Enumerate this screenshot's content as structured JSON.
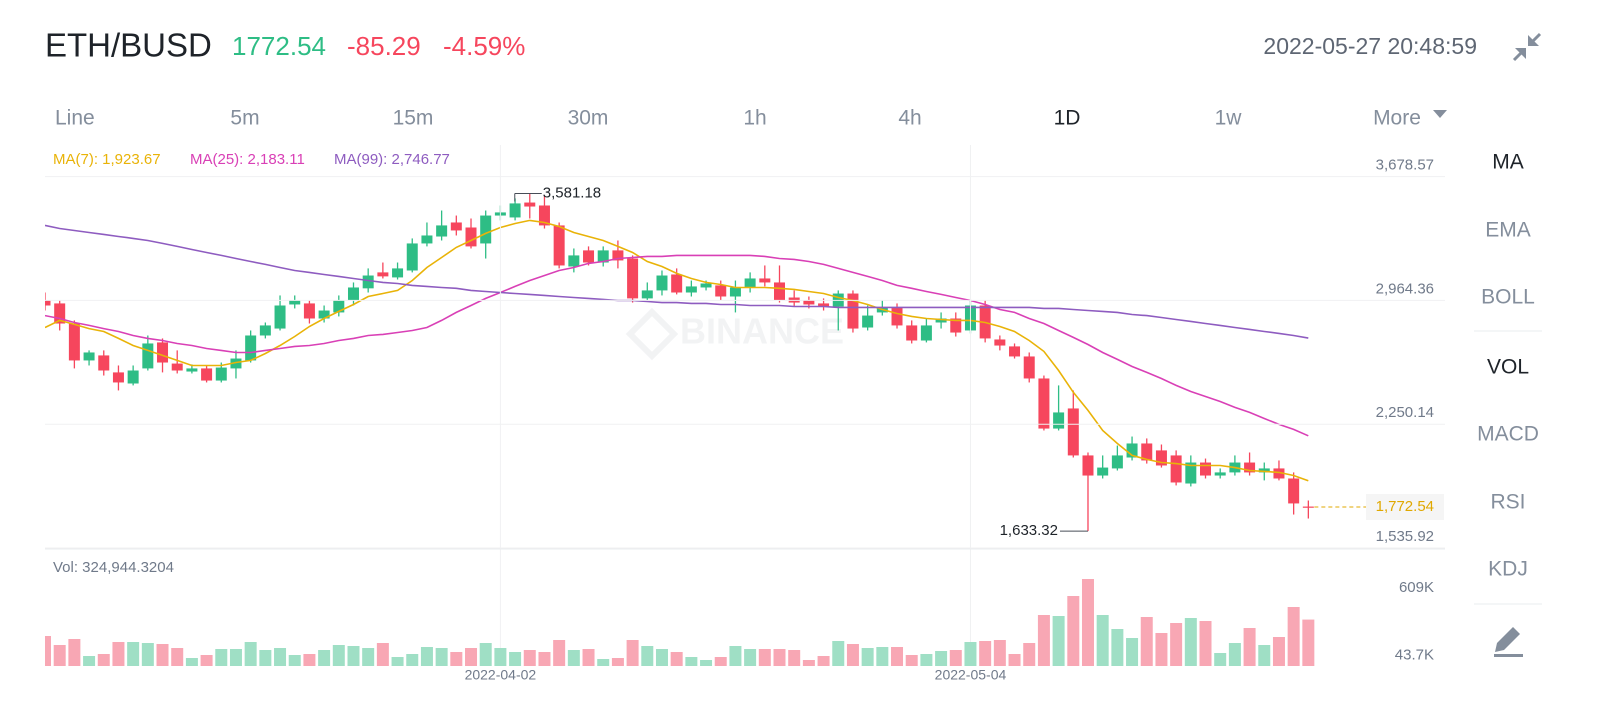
{
  "header": {
    "symbol": "ETH/BUSD",
    "price": "1772.54",
    "change": "-85.29",
    "change_pct": "-4.59%",
    "time": "2022-05-27 20:48:59"
  },
  "timeframes": [
    {
      "label": "Line"
    },
    {
      "label": "5m"
    },
    {
      "label": "15m"
    },
    {
      "label": "30m"
    },
    {
      "label": "1h"
    },
    {
      "label": "4h"
    },
    {
      "label": "1D",
      "active": true
    },
    {
      "label": "1w"
    },
    {
      "label": "More"
    }
  ],
  "indicators": [
    {
      "label": "MA",
      "active": true
    },
    {
      "label": "EMA"
    },
    {
      "label": "BOLL"
    },
    {
      "label": "VOL",
      "active": true
    },
    {
      "label": "MACD"
    },
    {
      "label": "RSI"
    },
    {
      "label": "KDJ"
    }
  ],
  "watermark": "BINANCE",
  "chart_data": [
    {
      "type": "candlestick",
      "up_color": "#2ebd85",
      "down_color": "#f6465d",
      "grid": true,
      "categories": [
        null,
        null,
        null,
        null,
        null,
        null,
        null,
        null,
        null,
        null,
        null,
        null,
        null,
        null,
        null,
        null,
        null,
        null,
        null,
        null,
        null,
        null,
        null,
        null,
        null,
        null,
        null,
        null,
        null,
        null,
        null,
        "2022-04-02",
        null,
        null,
        null,
        null,
        null,
        null,
        null,
        null,
        null,
        null,
        null,
        null,
        null,
        null,
        null,
        null,
        null,
        null,
        null,
        null,
        null,
        null,
        null,
        null,
        null,
        null,
        null,
        null,
        null,
        null,
        null,
        "2022-05-04",
        null,
        null,
        null,
        null,
        null,
        null,
        null,
        null,
        null,
        null,
        null,
        null,
        null,
        null,
        null,
        null,
        null,
        null,
        null,
        null,
        null,
        null,
        null
      ],
      "open": [
        2964,
        2947,
        2831,
        2618,
        2647,
        2549,
        2485,
        2572,
        2722,
        2600,
        2554,
        2572,
        2502,
        2572,
        2618,
        2762,
        2802,
        2941,
        2947,
        2860,
        2895,
        2964,
        3034,
        3126,
        3097,
        3137,
        3293,
        3333,
        3414,
        3385,
        3293,
        3454,
        3443,
        3529,
        3512,
        3397,
        3160,
        3253,
        3183,
        3253,
        3206,
        2976,
        3022,
        3114,
        3010,
        3039,
        3051,
        2987,
        3039,
        3091,
        3068,
        2981,
        2964,
        2947,
        2929,
        3004,
        2808,
        2895,
        2924,
        2820,
        2733,
        2837,
        2860,
        2791,
        2935,
        2739,
        2699,
        2641,
        2514,
        2225,
        2341,
        2070,
        1954,
        1995,
        2058,
        2139,
        2099,
        2070,
        1908,
        2029,
        1954,
        1972,
        2029,
        1972,
        1995,
        1937,
        1775
      ],
      "high": [
        3010,
        2964,
        2849,
        2676,
        2676,
        2589,
        2589,
        2762,
        2745,
        2676,
        2595,
        2589,
        2606,
        2676,
        2791,
        2837,
        2993,
        2993,
        2964,
        2935,
        2993,
        3068,
        3149,
        3183,
        3183,
        3322,
        3414,
        3483,
        3454,
        3437,
        3483,
        3512,
        3553,
        3581.18,
        3570,
        3414,
        3264,
        3276,
        3276,
        3310,
        3224,
        3068,
        3137,
        3149,
        3079,
        3079,
        3079,
        3079,
        3126,
        3166,
        3166,
        3022,
        2987,
        2976,
        3022,
        3022,
        2935,
        2964,
        2947,
        2849,
        2860,
        2895,
        2895,
        2964,
        2964,
        2762,
        2716,
        2664,
        2531,
        2474,
        2445,
        2087,
        2070,
        2127,
        2179,
        2168,
        2133,
        2099,
        2070,
        2052,
        1995,
        2070,
        2087,
        2029,
        2041,
        1972,
        1810
      ],
      "low": [
        2906,
        2791,
        2572,
        2589,
        2531,
        2445,
        2474,
        2560,
        2549,
        2543,
        2543,
        2491,
        2491,
        2514,
        2606,
        2745,
        2791,
        2918,
        2831,
        2837,
        2872,
        2935,
        3010,
        3091,
        3085,
        3126,
        3276,
        3310,
        3339,
        3264,
        3206,
        3426,
        3426,
        3437,
        3379,
        3149,
        3126,
        3166,
        3160,
        3149,
        2952,
        2964,
        2993,
        2999,
        2987,
        3022,
        2964,
        2895,
        3010,
        3045,
        2952,
        2929,
        2918,
        2906,
        2791,
        2779,
        2791,
        2877,
        2802,
        2716,
        2722,
        2802,
        2756,
        2774,
        2722,
        2676,
        2629,
        2491,
        2214,
        2214,
        2058,
        1633.32,
        1937,
        1983,
        2041,
        2023,
        2000,
        1897,
        1891,
        1937,
        1937,
        1954,
        1954,
        1926,
        1926,
        1729,
        1706
      ],
      "close": [
        2935,
        2831,
        2618,
        2664,
        2560,
        2491,
        2560,
        2716,
        2606,
        2560,
        2572,
        2502,
        2577,
        2629,
        2762,
        2820,
        2935,
        2964,
        2860,
        2906,
        2964,
        3039,
        3108,
        3103,
        3149,
        3293,
        3339,
        3397,
        3368,
        3276,
        3454,
        3472,
        3524,
        3506,
        3397,
        3166,
        3224,
        3183,
        3253,
        3195,
        2976,
        3022,
        3108,
        3010,
        3045,
        3062,
        2987,
        3039,
        3091,
        3068,
        2964,
        2952,
        2941,
        2929,
        3004,
        2802,
        2877,
        2924,
        2820,
        2733,
        2820,
        2860,
        2779,
        2935,
        2745,
        2704,
        2641,
        2514,
        2225,
        2318,
        2070,
        1954,
        2000,
        2070,
        2139,
        2041,
        2012,
        1914,
        2029,
        1954,
        1972,
        2029,
        1972,
        1995,
        1937,
        1793,
        1772.54
      ],
      "series": [
        {
          "name": "MA(7): 1,923.67",
          "color": "#e9b308",
          "values": [
            2808,
            2849,
            2826,
            2802,
            2785,
            2745,
            2704,
            2676,
            2647,
            2618,
            2589,
            2589,
            2589,
            2606,
            2618,
            2658,
            2704,
            2756,
            2814,
            2860,
            2901,
            2941,
            2987,
            3004,
            3022,
            3079,
            3154,
            3212,
            3270,
            3310,
            3351,
            3385,
            3408,
            3426,
            3414,
            3391,
            3356,
            3333,
            3310,
            3276,
            3241,
            3189,
            3160,
            3120,
            3091,
            3068,
            3056,
            3039,
            3039,
            3039,
            3034,
            3028,
            3016,
            3004,
            2981,
            2964,
            2941,
            2912,
            2889,
            2872,
            2860,
            2854,
            2849,
            2849,
            2837,
            2814,
            2785,
            2733,
            2670,
            2560,
            2434,
            2330,
            2214,
            2139,
            2070,
            2047,
            2029,
            2023,
            2012,
            2012,
            2012,
            2000,
            1983,
            1978,
            1972,
            1954,
            1923.67
          ]
        },
        {
          "name": "MA(25): 2,183.11",
          "color": "#d940b6",
          "values": [
            2877,
            2860,
            2837,
            2820,
            2802,
            2785,
            2762,
            2745,
            2733,
            2716,
            2704,
            2687,
            2676,
            2664,
            2664,
            2676,
            2687,
            2699,
            2704,
            2716,
            2733,
            2745,
            2762,
            2768,
            2779,
            2791,
            2808,
            2849,
            2895,
            2935,
            2976,
            3010,
            3045,
            3079,
            3108,
            3137,
            3154,
            3178,
            3189,
            3206,
            3212,
            3218,
            3218,
            3224,
            3224,
            3224,
            3224,
            3224,
            3224,
            3218,
            3206,
            3201,
            3189,
            3172,
            3149,
            3126,
            3103,
            3079,
            3051,
            3034,
            3016,
            2999,
            2981,
            2964,
            2941,
            2912,
            2895,
            2860,
            2831,
            2791,
            2751,
            2710,
            2664,
            2624,
            2583,
            2549,
            2514,
            2474,
            2439,
            2410,
            2381,
            2347,
            2318,
            2283,
            2249,
            2220,
            2183.11
          ]
        },
        {
          "name": "MA(99): 2,746.77",
          "color": "#8e5cc0",
          "values": [
            3397,
            3379,
            3368,
            3356,
            3345,
            3333,
            3322,
            3310,
            3293,
            3276,
            3258,
            3241,
            3224,
            3206,
            3189,
            3172,
            3154,
            3137,
            3126,
            3114,
            3103,
            3091,
            3079,
            3068,
            3062,
            3051,
            3045,
            3039,
            3034,
            3022,
            3016,
            3010,
            3004,
            2999,
            2993,
            2987,
            2981,
            2976,
            2970,
            2964,
            2964,
            2958,
            2952,
            2952,
            2947,
            2947,
            2941,
            2941,
            2935,
            2935,
            2935,
            2929,
            2929,
            2929,
            2924,
            2924,
            2924,
            2924,
            2924,
            2924,
            2924,
            2924,
            2924,
            2924,
            2924,
            2924,
            2924,
            2924,
            2918,
            2918,
            2912,
            2906,
            2901,
            2895,
            2883,
            2877,
            2866,
            2854,
            2843,
            2831,
            2820,
            2808,
            2797,
            2785,
            2774,
            2762,
            2746.77
          ]
        }
      ],
      "ylim": [
        1535.92,
        3861
      ],
      "yticks": [
        {
          "value": 1535.92,
          "label": "1,535.92"
        },
        {
          "value": 2250.14,
          "label": "2,250.14"
        },
        {
          "value": 2964.36,
          "label": "2,964.36"
        },
        {
          "value": 3678.57,
          "label": "3,678.57"
        }
      ],
      "annotations": [
        {
          "value": 3581.18,
          "label": "3,581.18"
        },
        {
          "value": 1633.32,
          "label": "1,633.32"
        }
      ],
      "last_price": {
        "value": 1772.54,
        "label": "1,772.54",
        "color": "#e0a800"
      }
    },
    {
      "type": "bar",
      "label": "Vol: 324,944.3204",
      "up_color": "#9fdfc5",
      "down_color": "#f8a7b4",
      "values": [
        210000,
        147000,
        189000,
        70000,
        84000,
        168000,
        168000,
        161000,
        154000,
        126000,
        56000,
        77000,
        119000,
        119000,
        168000,
        112000,
        126000,
        77000,
        84000,
        112000,
        147000,
        140000,
        126000,
        161000,
        63000,
        84000,
        133000,
        126000,
        98000,
        126000,
        161000,
        126000,
        98000,
        112000,
        98000,
        182000,
        112000,
        119000,
        49000,
        56000,
        182000,
        140000,
        119000,
        98000,
        63000,
        42000,
        63000,
        140000,
        119000,
        119000,
        119000,
        112000,
        42000,
        70000,
        175000,
        154000,
        126000,
        133000,
        133000,
        77000,
        84000,
        105000,
        112000,
        168000,
        175000,
        182000,
        84000,
        161000,
        357000,
        350000,
        490000,
        609000,
        357000,
        259000,
        196000,
        343000,
        231000,
        301000,
        336000,
        315000,
        91000,
        161000,
        266000,
        147000,
        203000,
        413000,
        324944.3204
      ],
      "ylim": [
        0,
        812000
      ],
      "yticks": [
        {
          "value": 43700,
          "label": "43.7K"
        },
        {
          "value": 609000,
          "label": "609K"
        }
      ]
    }
  ]
}
